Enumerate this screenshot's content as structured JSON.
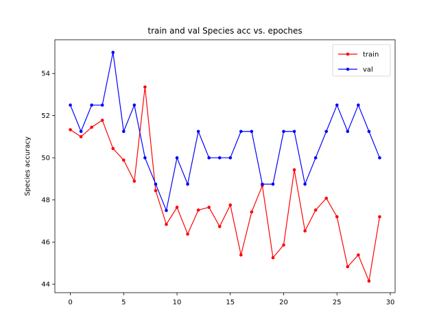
{
  "chart_data": {
    "type": "line",
    "title": "train and val Species acc vs. epoches",
    "xlabel": "",
    "ylabel": "Species accuracy",
    "xlim": [
      -1.45,
      30.45
    ],
    "ylim": [
      43.6,
      55.6
    ],
    "xticks": [
      0,
      5,
      10,
      15,
      20,
      25,
      30
    ],
    "yticks": [
      44,
      46,
      48,
      50,
      52,
      54
    ],
    "grid": false,
    "legend": "top-right",
    "x": [
      0,
      1,
      2,
      3,
      4,
      5,
      6,
      7,
      8,
      9,
      10,
      11,
      12,
      13,
      14,
      15,
      16,
      17,
      18,
      19,
      20,
      21,
      22,
      23,
      24,
      25,
      26,
      27,
      28,
      29
    ],
    "series": [
      {
        "name": "train",
        "color": "#ff0000",
        "values": [
          51.33,
          51.0,
          51.45,
          51.78,
          50.44,
          49.89,
          48.89,
          53.36,
          48.44,
          46.84,
          47.65,
          46.38,
          47.52,
          47.65,
          46.74,
          47.76,
          45.39,
          47.43,
          48.68,
          45.26,
          45.86,
          49.43,
          46.53,
          47.52,
          48.08,
          47.2,
          44.83,
          45.39,
          44.15,
          47.2
        ]
      },
      {
        "name": "val",
        "color": "#0000ff",
        "values": [
          52.5,
          51.25,
          52.5,
          52.5,
          55.0,
          51.25,
          52.5,
          50.0,
          48.75,
          47.5,
          50.0,
          48.75,
          51.25,
          50.0,
          50.0,
          50.0,
          51.25,
          51.25,
          48.75,
          48.75,
          51.25,
          51.25,
          48.75,
          50.0,
          51.25,
          52.5,
          51.25,
          52.5,
          51.25,
          50.0
        ]
      }
    ]
  }
}
